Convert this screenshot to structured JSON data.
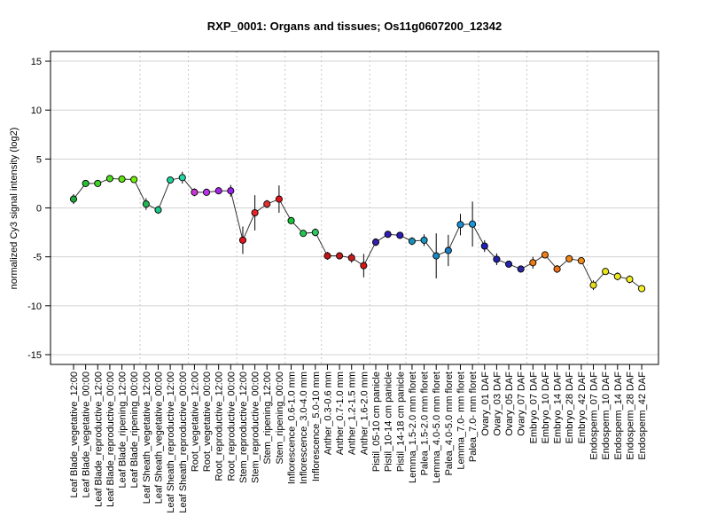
{
  "chart_data": {
    "type": "line",
    "title": "RXP_0001: Organs and tissues; Os11g0607200_12342",
    "xlabel": "",
    "ylabel": "normalized Cy3 signal intensity (log2)",
    "ylim": [
      -16,
      16
    ],
    "yticks": [
      -15,
      -10,
      -5,
      0,
      5,
      10,
      15
    ],
    "grid": "horizontal lines at y ticks; dotted vertical separators between organ groups",
    "categories": [
      "Leaf Blade_vegetative_12:00",
      "Leaf Blade_vegetative_00:00",
      "Leaf Blade_reproductive_12:00",
      "Leaf Blade_reproductive_00:00",
      "Leaf Blade_ripening_12:00",
      "Leaf Blade_ripening_00:00",
      "Leaf Sheath_vegetative_12:00",
      "Leaf Sheath_vegetative_00:00",
      "Leaf Sheath_reproductive_12:00",
      "Leaf Sheath_reproductive_00:00",
      "Root_vegetative_12:00",
      "Root_vegetative_00:00",
      "Root_reproductive_12:00",
      "Root_reproductive_00:00",
      "Stem_reproductive_12:00",
      "Stem_reproductive_00:00",
      "Stem_ripening_12:00",
      "Stem_ripening_00:00",
      "Inflorescence_0.6-1.0 mm",
      "Inflorescence_3.0-4.0 mm",
      "Inflorescence_5.0-10 mm",
      "Anther_0.3-0.6 mm",
      "Anther_0.7-1.0 mm",
      "Anther_1.2-1.5 mm",
      "Anther_1.6-2.0 mm",
      "Pistil_05-10 cm panicle",
      "Pistil_10-14 cm panicle",
      "Pistil_14-18 cm panicle",
      "Lemma_1.5-2.0 mm floret",
      "Palea_1.5-2.0 mm floret",
      "Lemma_4.0-5.0 mm floret",
      "Palea_4.0-5.0 mm floret",
      "Lemma_7.0- mm floret",
      "Palea_7.0- mm floret",
      "Ovary_01 DAF",
      "Ovary_03 DAF",
      "Ovary_05 DAF",
      "Ovary_07 DAF",
      "Embryo_07 DAF",
      "Embryo_10 DAF",
      "Embryo_14 DAF",
      "Embryo_28 DAF",
      "Embryo_42 DAF",
      "Endosperm_07 DAF",
      "Endosperm_10 DAF",
      "Endosperm_14 DAF",
      "Endosperm_28 DAF",
      "Endosperm_42 DAF"
    ],
    "values": [
      0.9,
      2.5,
      2.5,
      3.0,
      2.95,
      2.9,
      0.4,
      -0.2,
      2.85,
      3.1,
      1.6,
      1.6,
      1.75,
      1.75,
      -3.3,
      -0.5,
      0.4,
      0.9,
      -1.3,
      -2.6,
      -2.5,
      -4.9,
      -4.9,
      -5.1,
      -5.9,
      -3.5,
      -2.7,
      -2.8,
      -3.4,
      -3.3,
      -4.9,
      -4.35,
      -1.7,
      -1.65,
      -3.9,
      -5.25,
      -5.75,
      -6.25,
      -5.6,
      -4.8,
      -6.25,
      -5.2,
      -5.4,
      -7.9,
      -6.5,
      -7.0,
      -7.3,
      -8.25
    ],
    "errors": [
      0.5,
      0.2,
      0.2,
      0.2,
      0.2,
      0.2,
      0.6,
      0.4,
      0.3,
      0.6,
      0.4,
      0.3,
      0.3,
      0.6,
      1.4,
      1.8,
      0.4,
      1.4,
      0.25,
      0.25,
      0.4,
      0.4,
      0.3,
      0.5,
      1.2,
      0.4,
      0.3,
      0.3,
      0.4,
      0.6,
      2.3,
      1.6,
      1.1,
      2.3,
      0.6,
      0.6,
      0.3,
      0.3,
      0.6,
      0.3,
      0.4,
      0.3,
      0.3,
      0.5,
      0.3,
      0.4,
      0.4,
      0.3
    ],
    "point_colors": [
      "#1fa83c",
      "#26c234",
      "#3fd32a",
      "#4ddd1e",
      "#5ee70e",
      "#6fef06",
      "#20b855",
      "#1cc88a",
      "#1cd09a",
      "#22d8a8",
      "#cc33dd",
      "#bb33ee",
      "#aa22ee",
      "#9a1ff0",
      "#e0171e",
      "#e8242a",
      "#e03030",
      "#e0141a",
      "#18c43a",
      "#22c852",
      "#2ec860",
      "#c41414",
      "#c41a1a",
      "#c81c1c",
      "#d21818",
      "#3320a8",
      "#2f1eb0",
      "#2a1cb4",
      "#1890b8",
      "#1a98c0",
      "#1a88c4",
      "#1a7ec8",
      "#1a8ed2",
      "#1a96da",
      "#1f22b4",
      "#2222aa",
      "#2624a8",
      "#2a26a4",
      "#ee7a14",
      "#f08016",
      "#ee7018",
      "#f28418",
      "#f08a1a",
      "#e6dc1a",
      "#e8e41c",
      "#ece81e",
      "#f0ec22",
      "#f4f028"
    ],
    "group_separators_after": [
      5,
      9,
      13,
      17,
      20,
      24,
      27,
      33,
      37,
      42
    ]
  }
}
